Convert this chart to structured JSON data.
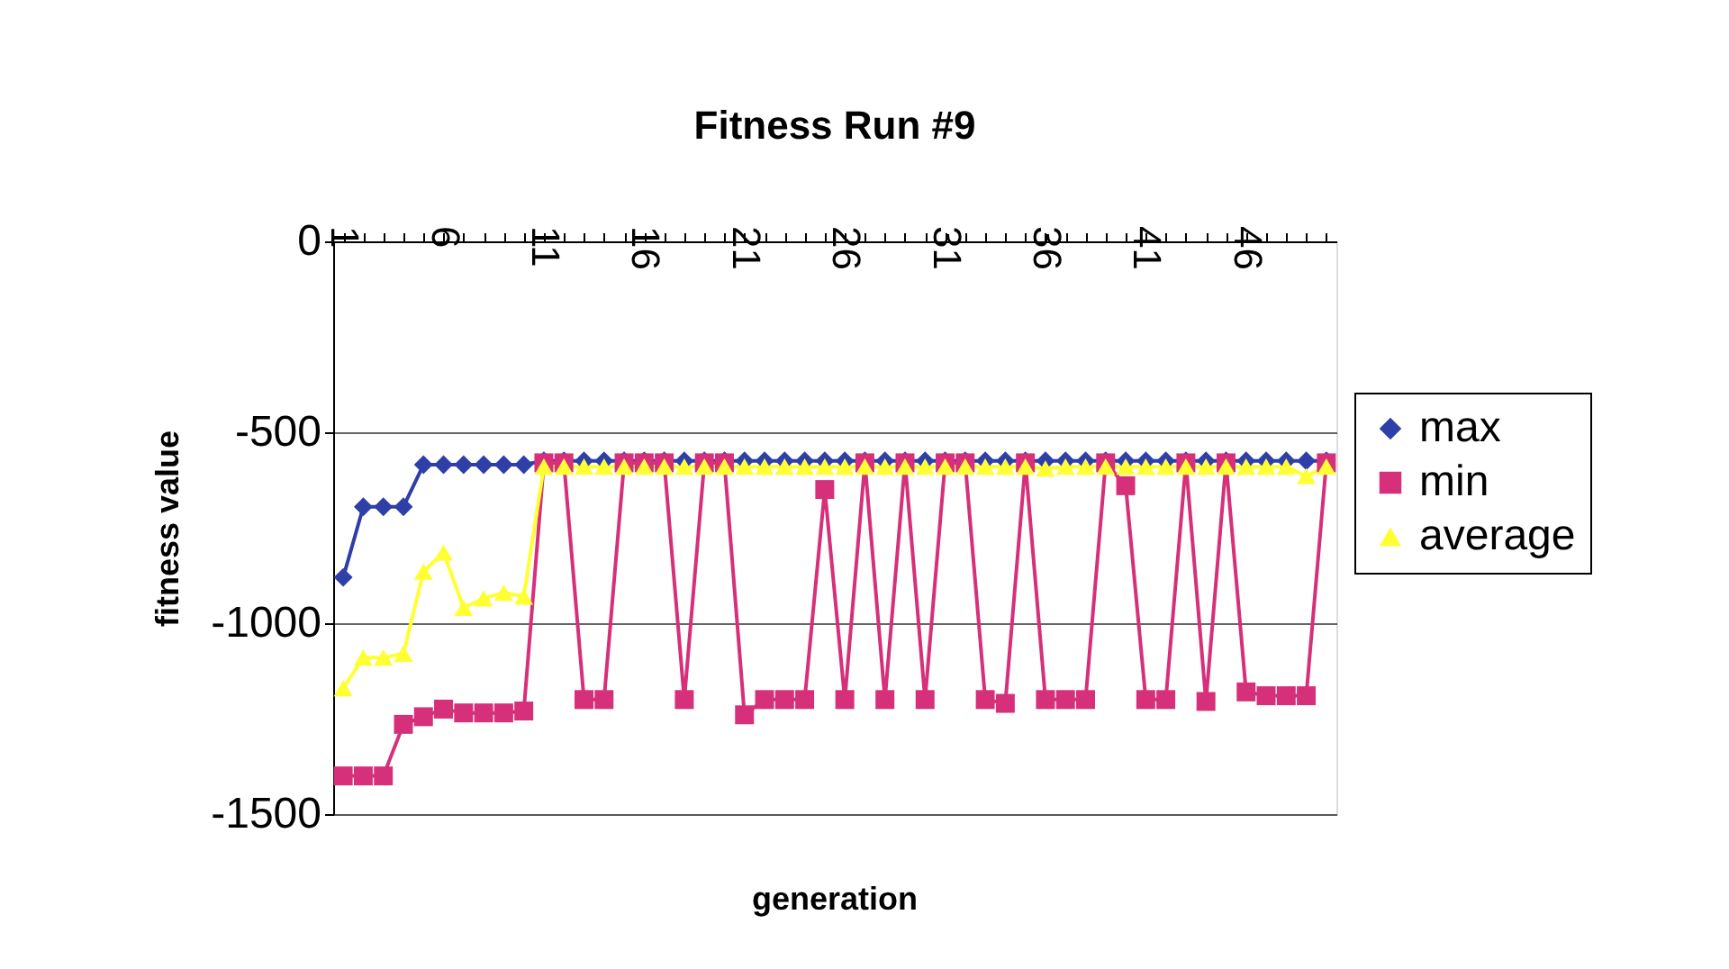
{
  "chart_data": {
    "type": "line",
    "title": "Fitness Run #9",
    "xlabel": "generation",
    "ylabel": "fitness value",
    "categories": [
      "1",
      null,
      null,
      null,
      null,
      "6",
      null,
      null,
      null,
      null,
      "11",
      null,
      null,
      null,
      null,
      "16",
      null,
      null,
      null,
      null,
      "21",
      null,
      null,
      null,
      null,
      "26",
      null,
      null,
      null,
      null,
      "31",
      null,
      null,
      null,
      null,
      "36",
      null,
      null,
      null,
      null,
      "41",
      null,
      null,
      null,
      null,
      "46",
      null,
      null,
      null,
      null
    ],
    "series": [
      {
        "name": "max",
        "color": "#2e3fa8",
        "marker": "diamond",
        "values": [
          -880,
          -695,
          -695,
          -695,
          -585,
          -585,
          -585,
          -585,
          -585,
          -585,
          -575,
          -575,
          -575,
          -575,
          -575,
          -575,
          -575,
          -575,
          -575,
          -575,
          -575,
          -575,
          -575,
          -575,
          -575,
          -575,
          -575,
          -575,
          -575,
          -575,
          -575,
          -575,
          -575,
          -575,
          -575,
          -575,
          -575,
          -575,
          -575,
          -575,
          -575,
          -575,
          -575,
          -575,
          -575,
          -575,
          -575,
          -575,
          -575,
          -575
        ]
      },
      {
        "name": "min",
        "color": "#d6307a",
        "marker": "square",
        "values": [
          -1400,
          -1400,
          -1400,
          -1265,
          -1245,
          -1225,
          -1235,
          -1235,
          -1235,
          -1230,
          -580,
          -580,
          -1200,
          -1200,
          -580,
          -580,
          -580,
          -1200,
          -580,
          -580,
          -1240,
          -1200,
          -1200,
          -1200,
          -650,
          -1200,
          -580,
          -1200,
          -580,
          -1200,
          -580,
          -580,
          -1200,
          -1210,
          -580,
          -1200,
          -1200,
          -1200,
          -580,
          -640,
          -1200,
          -1200,
          -580,
          -1205,
          -580,
          -1180,
          -1190,
          -1190,
          -1190,
          -580
        ]
      },
      {
        "name": "average",
        "color": "#ffff33",
        "marker": "triangle",
        "values": [
          -1170,
          -1090,
          -1090,
          -1080,
          -865,
          -815,
          -960,
          -935,
          -920,
          -930,
          -590,
          -590,
          -590,
          -590,
          -590,
          -590,
          -590,
          -590,
          -590,
          -590,
          -590,
          -590,
          -590,
          -590,
          -590,
          -590,
          -590,
          -590,
          -590,
          -590,
          -590,
          -590,
          -590,
          -590,
          -590,
          -595,
          -590,
          -590,
          -590,
          -590,
          -590,
          -590,
          -590,
          -590,
          -590,
          -590,
          -590,
          -590,
          -615,
          -590
        ]
      }
    ],
    "ylim": [
      -1500,
      0
    ],
    "yticks": [
      -1500,
      -1000,
      -500,
      0
    ],
    "grid": "y",
    "legend": "right"
  }
}
